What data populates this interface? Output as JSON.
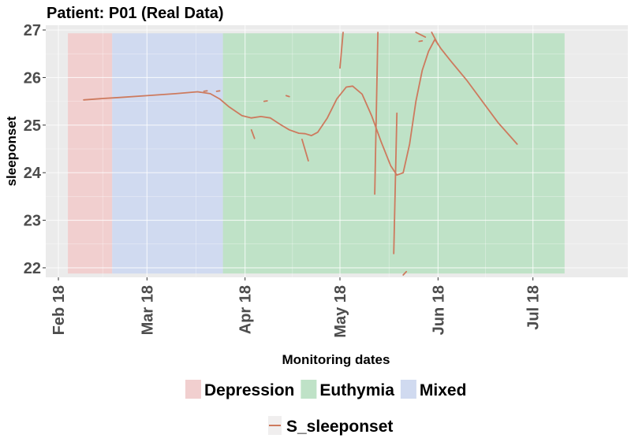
{
  "chart_data": {
    "type": "line",
    "title": "Patient: P01 (Real Data)",
    "xlabel": "Monitoring dates",
    "ylabel": "sleeponset",
    "x_type": "date",
    "xlim": [
      "2018-01-28",
      "2018-07-31"
    ],
    "ylim": [
      21.8,
      27.1
    ],
    "xticks": [
      {
        "date": "2018-02-01",
        "label": "Feb 18"
      },
      {
        "date": "2018-03-01",
        "label": "Mar 18"
      },
      {
        "date": "2018-04-01",
        "label": "Apr 18"
      },
      {
        "date": "2018-05-01",
        "label": "May 18"
      },
      {
        "date": "2018-06-01",
        "label": "Jun 18"
      },
      {
        "date": "2018-07-01",
        "label": "Jul 18"
      }
    ],
    "yticks": [
      22,
      23,
      24,
      25,
      26,
      27
    ],
    "grid": true,
    "background_color": "#ebebeb",
    "regions": [
      {
        "name": "Depression",
        "start": "2018-02-04",
        "end": "2018-02-18",
        "y_min": 21.88,
        "y_max": 26.93,
        "color": "#f1cfcf"
      },
      {
        "name": "Mixed",
        "start": "2018-02-18",
        "end": "2018-03-25",
        "y_min": 21.88,
        "y_max": 26.93,
        "color": "#d0daf0"
      },
      {
        "name": "Euthymia",
        "start": "2018-03-25",
        "end": "2018-07-11",
        "y_min": 21.88,
        "y_max": 26.93,
        "color": "#bfe2c7"
      }
    ],
    "legend": {
      "position": "bottom",
      "region_items": [
        "Depression",
        "Euthymia",
        "Mixed"
      ],
      "line_items": [
        "S_sleeponset"
      ]
    },
    "series": [
      {
        "name": "S_sleeponset",
        "color": "#cd7a5e",
        "segments": [
          [
            [
              "2018-02-09",
              25.53
            ],
            [
              "2018-02-15",
              25.56
            ],
            [
              "2018-02-20",
              25.58
            ],
            [
              "2018-03-01",
              25.62
            ],
            [
              "2018-03-10",
              25.66
            ],
            [
              "2018-03-17",
              25.7
            ],
            [
              "2018-03-21",
              25.66
            ],
            [
              "2018-03-24",
              25.55
            ],
            [
              "2018-03-27",
              25.38
            ],
            [
              "2018-03-31",
              25.2
            ],
            [
              "2018-04-03",
              25.15
            ],
            [
              "2018-04-06",
              25.18
            ],
            [
              "2018-04-09",
              25.15
            ],
            [
              "2018-04-12",
              25.02
            ],
            [
              "2018-04-15",
              24.9
            ],
            [
              "2018-04-18",
              24.83
            ],
            [
              "2018-04-20",
              24.82
            ],
            [
              "2018-04-22",
              24.78
            ],
            [
              "2018-04-24",
              24.85
            ],
            [
              "2018-04-27",
              25.15
            ],
            [
              "2018-04-30",
              25.55
            ],
            [
              "2018-05-03",
              25.8
            ],
            [
              "2018-05-05",
              25.82
            ],
            [
              "2018-05-08",
              25.65
            ],
            [
              "2018-05-11",
              25.2
            ],
            [
              "2018-05-14",
              24.65
            ],
            [
              "2018-05-17",
              24.15
            ],
            [
              "2018-05-19",
              23.95
            ],
            [
              "2018-05-21",
              24.0
            ],
            [
              "2018-05-23",
              24.6
            ],
            [
              "2018-05-25",
              25.5
            ],
            [
              "2018-05-27",
              26.15
            ],
            [
              "2018-05-29",
              26.55
            ],
            [
              "2018-05-31",
              26.8
            ],
            [
              "2018-06-02",
              26.6
            ],
            [
              "2018-06-05",
              26.35
            ],
            [
              "2018-06-10",
              25.95
            ],
            [
              "2018-06-15",
              25.5
            ],
            [
              "2018-06-20",
              25.05
            ],
            [
              "2018-06-26",
              24.6
            ]
          ],
          [
            [
              "2018-03-19",
              25.71
            ],
            [
              "2018-03-20",
              25.72
            ]
          ],
          [
            [
              "2018-03-23",
              25.71
            ],
            [
              "2018-03-24",
              25.72
            ]
          ],
          [
            [
              "2018-04-03",
              24.9
            ],
            [
              "2018-04-04",
              24.72
            ]
          ],
          [
            [
              "2018-04-07",
              25.5
            ],
            [
              "2018-04-08",
              25.51
            ]
          ],
          [
            [
              "2018-04-14",
              25.62
            ],
            [
              "2018-04-15",
              25.6
            ]
          ],
          [
            [
              "2018-04-19",
              24.7
            ],
            [
              "2018-04-21",
              24.25
            ]
          ],
          [
            [
              "2018-05-01",
              26.2
            ],
            [
              "2018-05-02",
              26.95
            ]
          ],
          [
            [
              "2018-05-12",
              23.55
            ],
            [
              "2018-05-13",
              26.95
            ]
          ],
          [
            [
              "2018-05-18",
              22.3
            ],
            [
              "2018-05-19",
              25.25
            ]
          ],
          [
            [
              "2018-05-21",
              21.85
            ],
            [
              "2018-05-22",
              21.92
            ]
          ],
          [
            [
              "2018-05-25",
              26.95
            ],
            [
              "2018-05-28",
              26.85
            ]
          ],
          [
            [
              "2018-05-26",
              26.76
            ],
            [
              "2018-05-27",
              26.77
            ]
          ],
          [
            [
              "2018-05-30",
              26.95
            ],
            [
              "2018-06-01",
              26.7
            ]
          ]
        ]
      }
    ]
  }
}
